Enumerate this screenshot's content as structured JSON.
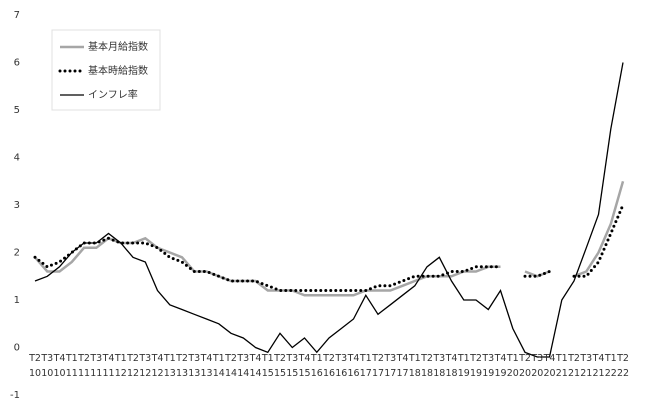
{
  "chart_data": {
    "type": "line",
    "categories": [
      "T2 10",
      "T3 10",
      "T4 10",
      "T1 11",
      "T2 11",
      "T3 11",
      "T4 11",
      "T1 12",
      "T2 12",
      "T3 12",
      "T4 12",
      "T1 13",
      "T2 13",
      "T3 13",
      "T4 13",
      "T1 14",
      "T2 14",
      "T3 14",
      "T4 14",
      "T1 15",
      "T2 15",
      "T3 15",
      "T4 15",
      "T1 16",
      "T2 16",
      "T3 16",
      "T4 16",
      "T1 17",
      "T2 17",
      "T3 17",
      "T4 17",
      "T1 18",
      "T2 18",
      "T3 18",
      "T4 18",
      "T1 19",
      "T2 19",
      "T3 19",
      "T4 19",
      "T1 20",
      "T2 20",
      "T3 20",
      "T4 20",
      "T1 21",
      "T2 21",
      "T3 21",
      "T4 21",
      "T1 22",
      "T2 22"
    ],
    "series": [
      {
        "name": "基本月給指数",
        "color": "#a6a6a6",
        "style": "solid",
        "values": [
          1.9,
          1.6,
          1.6,
          1.8,
          2.1,
          2.1,
          2.3,
          2.2,
          2.2,
          2.3,
          2.1,
          2.0,
          1.9,
          1.6,
          1.6,
          1.5,
          1.4,
          1.4,
          1.4,
          1.2,
          1.2,
          1.2,
          1.1,
          1.1,
          1.1,
          1.1,
          1.1,
          1.2,
          1.2,
          1.2,
          1.3,
          1.4,
          1.5,
          1.5,
          1.5,
          1.6,
          1.6,
          1.7,
          1.7,
          null,
          1.6,
          1.5,
          1.6,
          null,
          1.5,
          1.6,
          2.0,
          2.6,
          3.5
        ]
      },
      {
        "name": "基本時給指数",
        "color": "#000000",
        "style": "dotted",
        "values": [
          1.9,
          1.7,
          1.8,
          2.0,
          2.2,
          2.2,
          2.3,
          2.2,
          2.2,
          2.2,
          2.1,
          1.9,
          1.8,
          1.6,
          1.6,
          1.5,
          1.4,
          1.4,
          1.4,
          1.3,
          1.2,
          1.2,
          1.2,
          1.2,
          1.2,
          1.2,
          1.2,
          1.2,
          1.3,
          1.3,
          1.4,
          1.5,
          1.5,
          1.5,
          1.6,
          1.6,
          1.7,
          1.7,
          1.7,
          null,
          1.5,
          1.5,
          1.6,
          null,
          1.5,
          1.5,
          1.8,
          2.4,
          3.0
        ]
      },
      {
        "name": "インフレ率",
        "color": "#000000",
        "style": "solid",
        "values": [
          1.4,
          1.5,
          1.7,
          2.0,
          2.2,
          2.2,
          2.4,
          2.2,
          1.9,
          1.8,
          1.2,
          0.9,
          0.8,
          0.7,
          0.6,
          0.5,
          0.3,
          0.2,
          0.0,
          -0.1,
          0.3,
          0.0,
          0.2,
          -0.1,
          0.2,
          0.4,
          0.6,
          1.1,
          0.7,
          0.9,
          1.1,
          1.3,
          1.7,
          1.9,
          1.4,
          1.0,
          1.0,
          0.8,
          1.2,
          0.4,
          -0.1,
          -0.2,
          -0.2,
          1.0,
          1.4,
          2.1,
          2.8,
          4.6,
          6.0
        ]
      }
    ],
    "ylim": [
      -1,
      7
    ],
    "yticks": [
      -1,
      0,
      1,
      2,
      3,
      4,
      5,
      6,
      7
    ],
    "grid": false,
    "legend": "top-left"
  }
}
